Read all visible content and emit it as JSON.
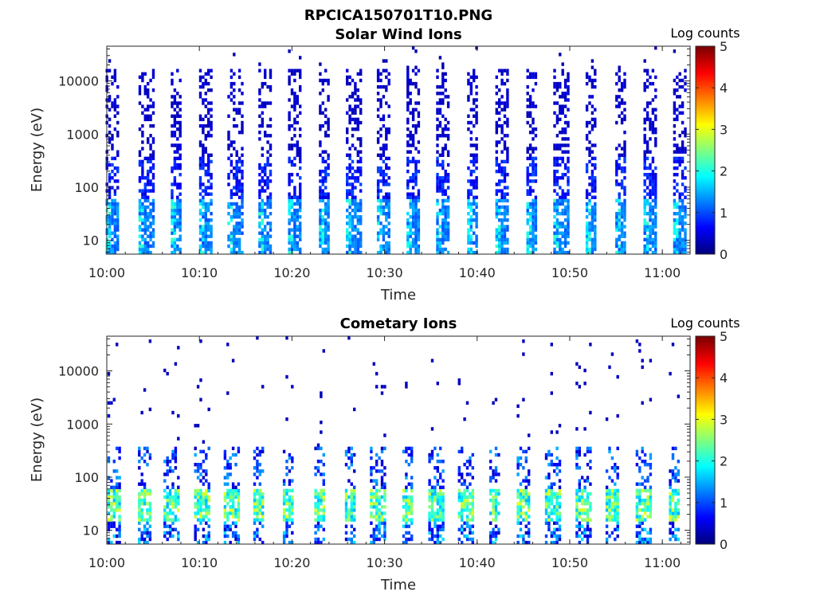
{
  "figure_title": "RPCICA150701T10.PNG",
  "chart_data": [
    {
      "type": "heatmap",
      "title": "Solar Wind Ions",
      "xlabel": "Time",
      "ylabel": "Energy (eV)",
      "x_ticks": [
        "10:00",
        "10:10",
        "10:20",
        "10:30",
        "10:40",
        "10:50",
        "11:00"
      ],
      "x_range_minutes": [
        0,
        63
      ],
      "y_scale": "log",
      "y_ticks": [
        "10",
        "100",
        "1000",
        "10000"
      ],
      "y_range": [
        5.5,
        45000
      ],
      "colorbar": {
        "label": "Log counts",
        "ticks": [
          "0",
          "1",
          "2",
          "3",
          "4",
          "5"
        ],
        "range": [
          0,
          5
        ],
        "colormap": "jet"
      },
      "sweep_minutes": [
        0.6,
        4.3,
        7.5,
        10.7,
        13.9,
        17.1,
        20.3,
        23.5,
        26.7,
        29.9,
        33.1,
        36.3,
        39.5,
        42.7,
        45.9,
        49.1,
        52.3,
        55.5,
        58.7,
        61.9
      ],
      "typical_levels": {
        "high_energy": 0.4,
        "mid_energy": 1.0,
        "low_energy_peak": 2.0
      },
      "peak_band_energy_ev": [
        20,
        60
      ]
    },
    {
      "type": "heatmap",
      "title": "Cometary Ions",
      "xlabel": "Time",
      "ylabel": "Energy (eV)",
      "x_ticks": [
        "10:00",
        "10:10",
        "10:20",
        "10:30",
        "10:40",
        "10:50",
        "11:00"
      ],
      "x_range_minutes": [
        0,
        63
      ],
      "y_scale": "log",
      "y_ticks": [
        "10",
        "100",
        "1000",
        "10000"
      ],
      "y_range": [
        5.5,
        45000
      ],
      "colorbar": {
        "label": "Log counts",
        "ticks": [
          "0",
          "1",
          "2",
          "3",
          "4",
          "5"
        ],
        "range": [
          0,
          5
        ],
        "colormap": "jet"
      },
      "sweep_minutes": [
        0.8,
        4.1,
        7.0,
        10.3,
        13.5,
        16.4,
        19.6,
        23.0,
        26.3,
        29.3,
        32.5,
        35.6,
        38.8,
        41.9,
        45.0,
        48.2,
        51.5,
        54.6,
        58.0,
        61.3
      ],
      "typical_levels": {
        "background": 0.3,
        "band": 1.5,
        "peak": 3.0
      },
      "peak_band_energy_ev": [
        15,
        60
      ]
    }
  ]
}
